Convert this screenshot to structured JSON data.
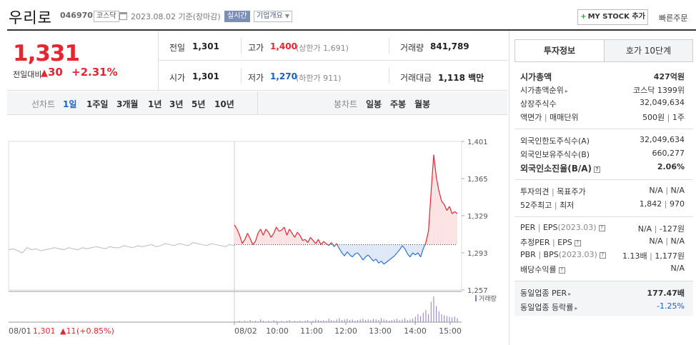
{
  "header": {
    "name": "우리로",
    "code": "046970",
    "market": "코스닥",
    "date": "2023.08.02 기준(장마감)",
    "realtime": "실시간",
    "overview": "기업개요",
    "mystock": "MY STOCK 추가",
    "quick": "빠른주문"
  },
  "price": {
    "current": "1,331",
    "compare_label": "전일대비",
    "compare_value": "30",
    "compare_pct": "+2.31%",
    "prev_label": "전일",
    "prev": "1,301",
    "open_label": "시가",
    "open": "1,301",
    "high_label": "고가",
    "high": "1,400",
    "upper_limit": "(상한가 1,691)",
    "low_label": "저가",
    "low": "1,270",
    "lower_limit": "(하한가 911)",
    "volume_label": "거래량",
    "volume": "841,789",
    "amount_label": "거래대금",
    "amount": "1,118 백만"
  },
  "tabs": {
    "line_label": "선차트",
    "line_items": [
      "1일",
      "1주일",
      "3개월",
      "1년",
      "3년",
      "5년",
      "10년"
    ],
    "candle_label": "봉차트",
    "candle_items": [
      "일봉",
      "주봉",
      "월봉"
    ]
  },
  "chart_data": {
    "type": "line",
    "y_ticks": [
      "1,401",
      "1,365",
      "1,329",
      "1,293",
      "1,257"
    ],
    "ylim": [
      1257,
      1401
    ],
    "baseline": 1301,
    "x_ticks": [
      "08/02",
      "10:00",
      "11:00",
      "12:00",
      "13:00",
      "14:00",
      "15:00"
    ],
    "prev_day_label": "08/01",
    "prev_day_price": "1,301",
    "prev_day_change": "11",
    "prev_day_pct": "(+0.85%)",
    "volume_legend": "거래량",
    "prev_day_series": [
      1296,
      1297,
      1295,
      1293,
      1298,
      1296,
      1297,
      1295,
      1296,
      1297,
      1298,
      1297,
      1296,
      1298,
      1297,
      1296,
      1298,
      1297,
      1298,
      1299,
      1298,
      1297,
      1299,
      1298,
      1298,
      1300,
      1299,
      1298,
      1300,
      1299,
      1300,
      1301,
      1299,
      1300,
      1302,
      1301,
      1300,
      1302,
      1301,
      1300,
      1303,
      1302,
      1301,
      1300,
      1302,
      1301,
      1300,
      1299,
      1301,
      1300
    ],
    "today_series": [
      1320,
      1316,
      1310,
      1302,
      1306,
      1312,
      1307,
      1301,
      1304,
      1312,
      1316,
      1310,
      1316,
      1313,
      1308,
      1312,
      1318,
      1314,
      1315,
      1318,
      1310,
      1316,
      1312,
      1308,
      1313,
      1310,
      1305,
      1306,
      1303,
      1308,
      1305,
      1302,
      1306,
      1301,
      1304,
      1302,
      1300,
      1303,
      1299,
      1302,
      1297,
      1293,
      1290,
      1294,
      1291,
      1289,
      1292,
      1293,
      1290,
      1286,
      1289,
      1291,
      1288,
      1285,
      1287,
      1283,
      1285,
      1282,
      1284,
      1286,
      1288,
      1290,
      1293,
      1296,
      1300,
      1297,
      1292,
      1289,
      1293,
      1291,
      1293,
      1289,
      1297,
      1303,
      1314,
      1352,
      1388,
      1366,
      1353,
      1343,
      1340,
      1334,
      1338,
      1331,
      1333,
      1331
    ],
    "today_volume": [
      1,
      1,
      2,
      1,
      2,
      1,
      3,
      1,
      2,
      1,
      4,
      2,
      1,
      2,
      1,
      3,
      2,
      1,
      2,
      1,
      2,
      3,
      1,
      2,
      1,
      2,
      1,
      2,
      3,
      1,
      2,
      4,
      3,
      2,
      3,
      2,
      5,
      3,
      2,
      4,
      6,
      3,
      4,
      5,
      3,
      4,
      2,
      3,
      4,
      5,
      3,
      4,
      3,
      5,
      4,
      3,
      6,
      4,
      3,
      2,
      3,
      4,
      5,
      3,
      4,
      6,
      3,
      4,
      5,
      8,
      12,
      9,
      14,
      18,
      12,
      30,
      38,
      24,
      16,
      12,
      10,
      9,
      8,
      7,
      8,
      6
    ]
  },
  "info": {
    "tab1": "투자정보",
    "tab2": "호가 10단계",
    "rows1": [
      {
        "k": "시가총액",
        "v": "427억원"
      },
      {
        "k": "시가총액순위",
        "v": "코스닥 1399위"
      },
      {
        "k": "상장주식수",
        "v": "32,049,634"
      },
      {
        "k": "액면가",
        "k2": "매매단위",
        "v": "500원",
        "v2": "1주"
      }
    ],
    "rows2": [
      {
        "k": "외국인한도주식수(A)",
        "v": "32,049,634"
      },
      {
        "k": "외국인보유주식수(B)",
        "v": "660,277"
      },
      {
        "k": "외국인소진율(B/A)",
        "v": "2.06%"
      }
    ],
    "rows3": [
      {
        "k": "투자의견",
        "k2": "목표주가",
        "v": "N/A",
        "v2": "N/A"
      },
      {
        "k": "52주최고",
        "k2": "최저",
        "v": "1,842",
        "v2": "970"
      }
    ],
    "rows4": [
      {
        "k": "PER",
        "k2": "EPS",
        "k3": "(2023.03)",
        "v": "N/A",
        "v2": "-127원"
      },
      {
        "k": "추정PER",
        "k2": "EPS",
        "v": "N/A",
        "v2": "N/A"
      },
      {
        "k": "PBR",
        "k2": "BPS",
        "k3": "(2023.03)",
        "v": "1.13배",
        "v2": "1,177원"
      },
      {
        "k": "배당수익률",
        "v": "N/A"
      }
    ],
    "rows5": [
      {
        "k": "동일업종 PER",
        "v": "177.47배"
      },
      {
        "k": "동일업종 등락률",
        "v": "-1.25%"
      }
    ]
  }
}
